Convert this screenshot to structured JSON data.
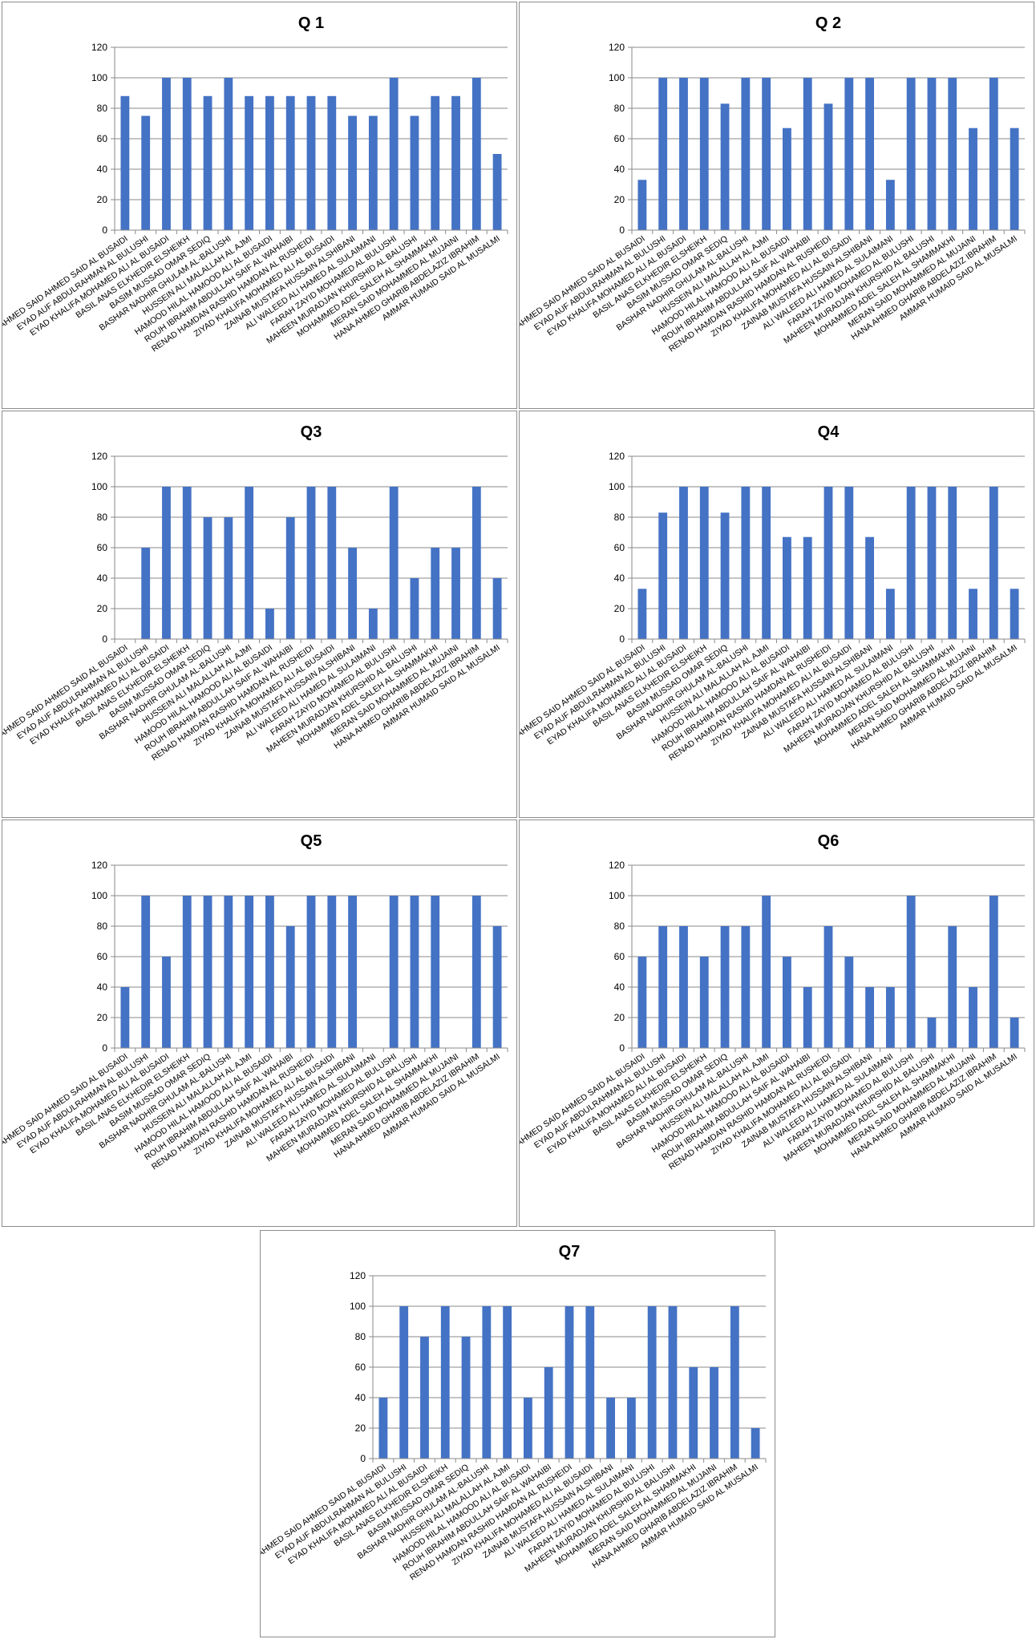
{
  "colors": {
    "bar": "#4472C4",
    "grid": "#8a8a8a"
  },
  "chart_data": [
    {
      "id": "q1",
      "type": "bar",
      "title": "Q 1",
      "ylim": [
        0,
        120
      ],
      "yticks": [
        0,
        20,
        40,
        60,
        80,
        100,
        120
      ],
      "grid": true,
      "legend": "none",
      "categories": [
        "AHMED SAID AHMED SAID AL BUSAIDI",
        "EYAD AUF ABDULRAHMAN AL BULUSHI",
        "EYAD KHALIFA MOHAMED ALI AL BUSAIDI",
        "BASIL ANAS ELKHEDIR ELSHEIKH",
        "BASIM MUSSAD OMAR SEDIQ",
        "BASHAR NADHIR GHULAM AL-BALUSHI",
        "HUSSEIN ALI MALALLAH AL AJMI",
        "HAMOOD HILAL HAMOOD ALI AL BUSAIDI",
        "ROUH IBRAHIM ABDULLAH SAIF AL WAHAIBI",
        "RENAD HAMDAN RASHID HAMDAN AL RUSHEIDI",
        "ZIYAD KHALIFA MOHAMED ALI AL BUSAIDI",
        "ZAINAB MUSTAFA HUSSAIN ALSHIBANI",
        "ALI WALEED ALI HAMED AL SULAIMANI",
        "FARAH ZAYID MOHAMED AL BULUSHI",
        "MAHEEN MURADJAN KHURSHID AL BALUSHI",
        "MOHAMMED ADEL SALEH AL SHAMMAKHI",
        "MERAN SAID MOHAMMED AL MUJAINI",
        "HANA AHMED GHARIB ABDELAZIZ IBRAHIM",
        "AMMAR HUMAID SAID AL MUSALMI"
      ],
      "values": [
        88,
        75,
        100,
        100,
        88,
        100,
        88,
        88,
        88,
        88,
        88,
        75,
        75,
        100,
        75,
        88,
        88,
        100,
        50
      ]
    },
    {
      "id": "q2",
      "type": "bar",
      "title": "Q 2",
      "ylim": [
        0,
        120
      ],
      "yticks": [
        0,
        20,
        40,
        60,
        80,
        100,
        120
      ],
      "grid": true,
      "legend": "none",
      "categories": [
        "AHMED SAID AHMED SAID AL BUSAIDI",
        "EYAD AUF ABDULRAHMAN AL BULUSHI",
        "EYAD KHALIFA MOHAMED ALI AL BUSAIDI",
        "BASIL ANAS ELKHEDIR ELSHEIKH",
        "BASIM MUSSAD OMAR SEDIQ",
        "BASHAR NADHIR GHULAM AL-BALUSHI",
        "HUSSEIN ALI MALALLAH AL AJMI",
        "HAMOOD HILAL HAMOOD ALI AL BUSAIDI",
        "ROUH IBRAHIM ABDULLAH SAIF AL WAHAIBI",
        "RENAD HAMDAN RASHID HAMDAN AL RUSHEIDI",
        "ZIYAD KHALIFA MOHAMED ALI AL BUSAIDI",
        "ZAINAB MUSTAFA HUSSAIN ALSHIBANI",
        "ALI WALEED ALI HAMED AL SULAIMANI",
        "FARAH ZAYID MOHAMED AL BULUSHI",
        "MAHEEN MURADJAN KHURSHID AL BALUSHI",
        "MOHAMMED ADEL SALEH AL SHAMMAKHI",
        "MERAN SAID MOHAMMED AL MUJAINI",
        "HANA AHMED GHARIB ABDELAZIZ IBRAHIM",
        "AMMAR HUMAID SAID AL MUSALMI"
      ],
      "values": [
        33,
        100,
        100,
        100,
        83,
        100,
        100,
        67,
        100,
        83,
        100,
        100,
        33,
        100,
        100,
        100,
        67,
        100,
        67
      ]
    },
    {
      "id": "q3",
      "type": "bar",
      "title": "Q3",
      "ylim": [
        0,
        120
      ],
      "yticks": [
        0,
        20,
        40,
        60,
        80,
        100,
        120
      ],
      "grid": true,
      "legend": "none",
      "categories": [
        "AHMED SAID AHMED SAID AL BUSAIDI",
        "EYAD AUF ABDULRAHMAN AL BULUSHI",
        "EYAD KHALIFA MOHAMED ALI AL BUSAIDI",
        "BASIL ANAS ELKHEDIR ELSHEIKH",
        "BASIM MUSSAD OMAR SEDIQ",
        "BASHAR NADHIR GHULAM AL-BALUSHI",
        "HUSSEIN ALI MALALLAH AL AJMI",
        "HAMOOD HILAL HAMOOD ALI AL BUSAIDI",
        "ROUH IBRAHIM ABDULLAH SAIF AL WAHAIBI",
        "RENAD HAMDAN RASHID HAMDAN AL RUSHEIDI",
        "ZIYAD KHALIFA MOHAMED ALI AL BUSAIDI",
        "ZAINAB MUSTAFA HUSSAIN ALSHIBANI",
        "ALI WALEED ALI HAMED AL SULAIMANI",
        "FARAH ZAYID MOHAMED AL BULUSHI",
        "MAHEEN MURADJAN KHURSHID AL BALUSHI",
        "MOHAMMED ADEL SALEH AL SHAMMAKHI",
        "MERAN SAID MOHAMMED AL MUJAINI",
        "HANA AHMED GHARIB ABDELAZIZ IBRAHIM",
        "AMMAR HUMAID SAID AL MUSALMI"
      ],
      "values": [
        0,
        60,
        100,
        100,
        80,
        80,
        100,
        20,
        80,
        100,
        100,
        60,
        20,
        100,
        40,
        60,
        60,
        100,
        40
      ]
    },
    {
      "id": "q4",
      "type": "bar",
      "title": "Q4",
      "ylim": [
        0,
        120
      ],
      "yticks": [
        0,
        20,
        40,
        60,
        80,
        100,
        120
      ],
      "grid": true,
      "legend": "none",
      "categories": [
        "AHMED SAID AHMED SAID AL BUSAIDI",
        "EYAD AUF ABDULRAHMAN AL BULUSHI",
        "EYAD KHALIFA MOHAMED ALI AL BUSAIDI",
        "BASIL ANAS ELKHEDIR ELSHEIKH",
        "BASIM MUSSAD OMAR SEDIQ",
        "BASHAR NADHIR GHULAM AL-BALUSHI",
        "HUSSEIN ALI MALALLAH AL AJMI",
        "HAMOOD HILAL HAMOOD ALI AL BUSAIDI",
        "ROUH IBRAHIM ABDULLAH SAIF AL WAHAIBI",
        "RENAD HAMDAN RASHID HAMDAN AL RUSHEIDI",
        "ZIYAD KHALIFA MOHAMED ALI AL BUSAIDI",
        "ZAINAB MUSTAFA HUSSAIN ALSHIBANI",
        "ALI WALEED ALI HAMED AL SULAIMANI",
        "FARAH ZAYID MOHAMED AL BULUSHI",
        "MAHEEN MURADJAN KHURSHID AL BALUSHI",
        "MOHAMMED ADEL SALEH AL SHAMMAKHI",
        "MERAN SAID MOHAMMED AL MUJAINI",
        "HANA AHMED GHARIB ABDELAZIZ IBRAHIM",
        "AMMAR HUMAID SAID AL MUSALMI"
      ],
      "values": [
        33,
        83,
        100,
        100,
        83,
        100,
        100,
        67,
        67,
        100,
        100,
        67,
        33,
        100,
        100,
        100,
        33,
        100,
        33
      ]
    },
    {
      "id": "q5",
      "type": "bar",
      "title": "Q5",
      "ylim": [
        0,
        120
      ],
      "yticks": [
        0,
        20,
        40,
        60,
        80,
        100,
        120
      ],
      "grid": true,
      "legend": "none",
      "categories": [
        "AHMED SAID AHMED SAID AL BUSAIDI",
        "EYAD AUF ABDULRAHMAN AL BULUSHI",
        "EYAD KHALIFA MOHAMED ALI AL BUSAIDI",
        "BASIL ANAS ELKHEDIR ELSHEIKH",
        "BASIM MUSSAD OMAR SEDIQ",
        "BASHAR NADHIR GHULAM AL-BALUSHI",
        "HUSSEIN ALI MALALLAH AL AJMI",
        "HAMOOD HILAL HAMOOD ALI AL BUSAIDI",
        "ROUH IBRAHIM ABDULLAH SAIF AL WAHAIBI",
        "RENAD HAMDAN RASHID HAMDAN AL RUSHEIDI",
        "ZIYAD KHALIFA MOHAMED ALI AL BUSAIDI",
        "ZAINAB MUSTAFA HUSSAIN ALSHIBANI",
        "ALI WALEED ALI HAMED AL SULAIMANI",
        "FARAH ZAYID MOHAMED AL BULUSHI",
        "MAHEEN MURADJAN KHURSHID AL BALUSHI",
        "MOHAMMED ADEL SALEH AL SHAMMAKHI",
        "MERAN SAID MOHAMMED AL MUJAINI",
        "HANA AHMED GHARIB ABDELAZIZ IBRAHIM",
        "AMMAR HUMAID SAID AL MUSALMI"
      ],
      "values": [
        40,
        100,
        60,
        100,
        100,
        100,
        100,
        100,
        80,
        100,
        100,
        100,
        0,
        100,
        100,
        100,
        0,
        100,
        80
      ]
    },
    {
      "id": "q6",
      "type": "bar",
      "title": "Q6",
      "ylim": [
        0,
        120
      ],
      "yticks": [
        0,
        20,
        40,
        60,
        80,
        100,
        120
      ],
      "grid": true,
      "legend": "none",
      "categories": [
        "AHMED SAID AHMED SAID AL BUSAIDI",
        "EYAD AUF ABDULRAHMAN AL BULUSHI",
        "EYAD KHALIFA MOHAMED ALI AL BUSAIDI",
        "BASIL ANAS ELKHEDIR ELSHEIKH",
        "BASIM MUSSAD OMAR SEDIQ",
        "BASHAR NADHIR GHULAM AL-BALUSHI",
        "HUSSEIN ALI MALALLAH AL AJMI",
        "HAMOOD HILAL HAMOOD ALI AL BUSAIDI",
        "ROUH IBRAHIM ABDULLAH SAIF AL WAHAIBI",
        "RENAD HAMDAN RASHID HAMDAN AL RUSHEIDI",
        "ZIYAD KHALIFA MOHAMED ALI AL BUSAIDI",
        "ZAINAB MUSTAFA HUSSAIN ALSHIBANI",
        "ALI WALEED ALI HAMED AL SULAIMANI",
        "FARAH ZAYID MOHAMED AL BULUSHI",
        "MAHEEN MURADJAN KHURSHID AL BALUSHI",
        "MOHAMMED ADEL SALEH AL SHAMMAKHI",
        "MERAN SAID MOHAMMED AL MUJAINI",
        "HANA AHMED GHARIB ABDELAZIZ IBRAHIM",
        "AMMAR HUMAID SAID AL MUSALMI"
      ],
      "values": [
        60,
        80,
        80,
        60,
        80,
        80,
        100,
        60,
        40,
        80,
        60,
        40,
        40,
        100,
        20,
        80,
        40,
        100,
        20
      ]
    },
    {
      "id": "q7",
      "type": "bar",
      "title": "Q7",
      "ylim": [
        0,
        120
      ],
      "yticks": [
        0,
        20,
        40,
        60,
        80,
        100,
        120
      ],
      "grid": true,
      "legend": "none",
      "categories": [
        "AHMED SAID AHMED SAID AL BUSAIDI",
        "EYAD AUF ABDULRAHMAN AL BULUSHI",
        "EYAD KHALIFA MOHAMED ALI AL BUSAIDI",
        "BASIL ANAS ELKHEDIR ELSHEIKH",
        "BASIM MUSSAD OMAR SEDIQ",
        "BASHAR NADHIR GHULAM AL-BALUSHI",
        "HUSSEIN ALI MALALLAH AL AJMI",
        "HAMOOD HILAL HAMOOD ALI AL BUSAIDI",
        "ROUH IBRAHIM ABDULLAH SAIF AL WAHAIBI",
        "RENAD HAMDAN RASHID HAMDAN AL RUSHEIDI",
        "ZIYAD KHALIFA MOHAMED ALI AL BUSAIDI",
        "ZAINAB MUSTAFA HUSSAIN ALSHIBANI",
        "ALI WALEED ALI HAMED AL SULAIMANI",
        "FARAH ZAYID MOHAMED AL BULUSHI",
        "MAHEEN MURADJAN KHURSHID AL BALUSHI",
        "MOHAMMED ADEL SALEH AL SHAMMAKHI",
        "MERAN SAID MOHAMMED AL MUJAINI",
        "HANA AHMED GHARIB ABDELAZIZ IBRAHIM",
        "AMMAR HUMAID SAID AL MUSALMI"
      ],
      "values": [
        40,
        100,
        80,
        100,
        80,
        100,
        100,
        40,
        60,
        100,
        100,
        40,
        40,
        100,
        100,
        60,
        60,
        100,
        20
      ]
    }
  ]
}
